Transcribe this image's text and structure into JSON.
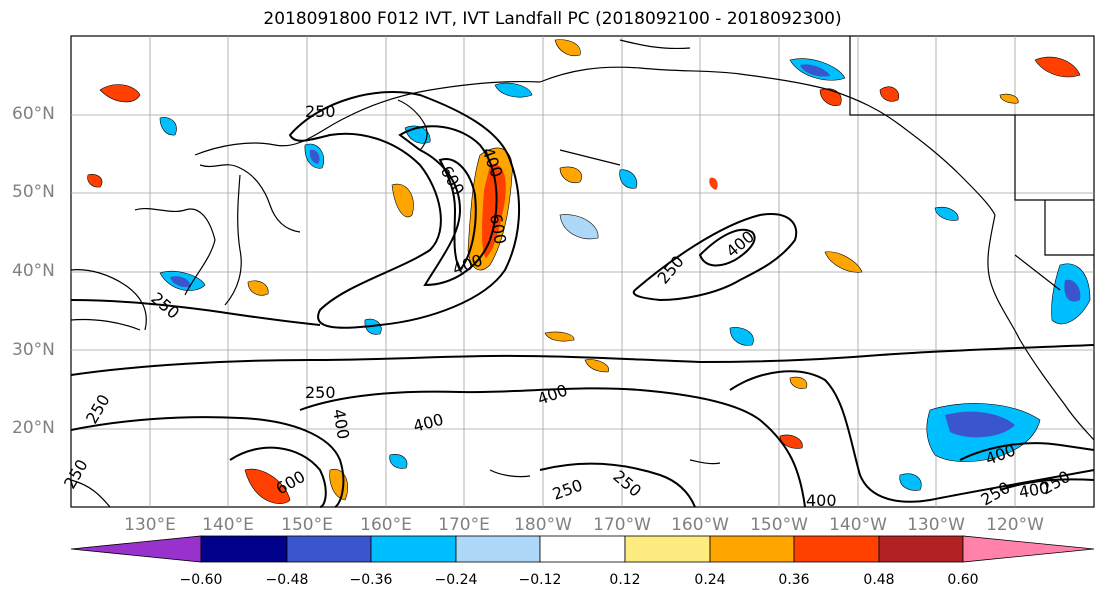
{
  "title": "2018091800 F012 IVT, IVT Landfall PC (2018092100 - 2018092300)",
  "lat_labels": [
    "60°N",
    "50°N",
    "40°N",
    "30°N",
    "20°N"
  ],
  "lon_labels": [
    "130°E",
    "140°E",
    "150°E",
    "160°E",
    "170°E",
    "180°W",
    "170°W",
    "160°W",
    "150°W",
    "140°W",
    "130°W",
    "120°W"
  ],
  "colorbar": {
    "ticks": [
      "−0.60",
      "−0.48",
      "−0.36",
      "−0.24",
      "−0.12",
      "0.12",
      "0.24",
      "0.36",
      "0.48",
      "0.60"
    ],
    "colors": [
      "#9932cc",
      "#00008b",
      "#3a56cc",
      "#00bfff",
      "#add8f8",
      "#ffffff",
      "#ffec80",
      "#ffa500",
      "#ff4000",
      "#b22222",
      "#ff82ab"
    ]
  },
  "contour_labels": [
    "250",
    "400",
    "600",
    "250",
    "400",
    "600",
    "250",
    "400",
    "250",
    "400",
    "250",
    "400",
    "600",
    "250",
    "400",
    "250",
    "400",
    "250",
    "400",
    "250",
    "400",
    "250"
  ]
}
